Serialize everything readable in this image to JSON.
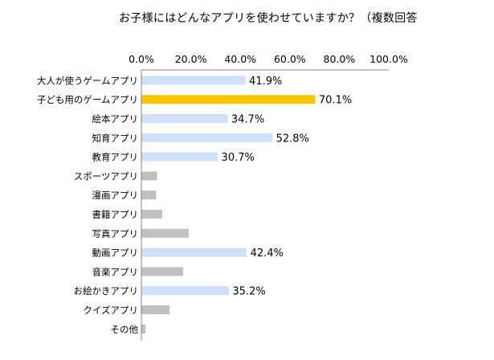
{
  "chart_data": {
    "type": "bar",
    "orientation": "horizontal",
    "title": "お子様にはどんなアプリを使わせていますか？（複数回答",
    "xlabel": "",
    "ylabel": "",
    "xlim": [
      0,
      100
    ],
    "x_ticks": [
      "0.0%",
      "20.0%",
      "40.0%",
      "60.0%",
      "80.0%",
      "100.0%"
    ],
    "x_axis_position": "top",
    "grid": false,
    "legend": "none",
    "categories": [
      "大人が使うゲームアプリ",
      "子ども用のゲームアプリ",
      "絵本アプリ",
      "知育アプリ",
      "教育アプリ",
      "スポーツアプリ",
      "漫画アプリ",
      "書籍アプリ",
      "写真アプリ",
      "動画アプリ",
      "音楽アプリ",
      "お絵かきアプリ",
      "クイズアプリ",
      "その他"
    ],
    "values": [
      41.9,
      70.1,
      34.7,
      52.8,
      30.7,
      6.2,
      5.8,
      8.3,
      19.0,
      42.4,
      16.7,
      35.2,
      11.2,
      1.5
    ],
    "data_labels": [
      "41.9%",
      "70.1%",
      "34.7%",
      "52.8%",
      "30.7%",
      "",
      "",
      "",
      "",
      "42.4%",
      "",
      "35.2%",
      "",
      ""
    ],
    "bar_colors": [
      "#cfe0f9",
      "#f7c600",
      "#cfe0f9",
      "#cfe0f9",
      "#cfe0f9",
      "#c0c0c0",
      "#c0c0c0",
      "#c0c0c0",
      "#c0c0c0",
      "#cfe0f9",
      "#c0c0c0",
      "#cfe0f9",
      "#c0c0c0",
      "#c0c0c0"
    ]
  },
  "colors": {
    "labeled_bar": "#cfe0f9",
    "highlight_bar": "#f7c600",
    "other_bar": "#c0c0c0",
    "axis": "#808080"
  }
}
